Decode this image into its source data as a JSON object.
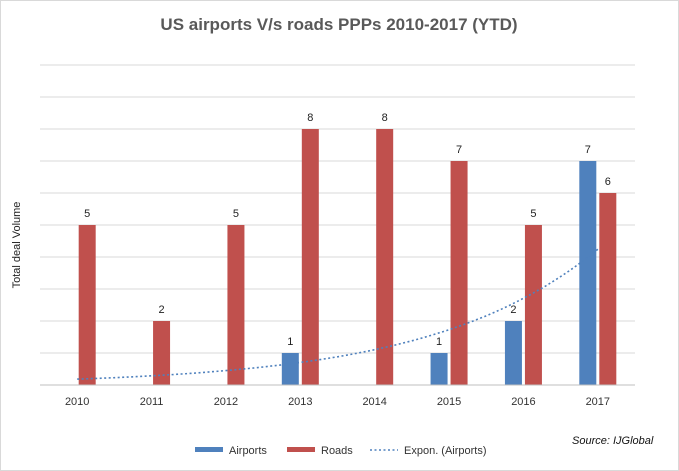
{
  "chart_data": {
    "type": "bar",
    "title": "US airports V/s roads PPPs 2010-2017 (YTD)",
    "ylabel": "Total deal Volume",
    "xlabel": "",
    "categories": [
      "2010",
      "2011",
      "2012",
      "2013",
      "2014",
      "2015",
      "2016",
      "2017"
    ],
    "series": [
      {
        "name": "Airports",
        "values": [
          0,
          0,
          0,
          1,
          0,
          1,
          2,
          7
        ],
        "color": "#4f81bd"
      },
      {
        "name": "Roads",
        "values": [
          5,
          2,
          5,
          8,
          8,
          7,
          5,
          6
        ],
        "color": "#c0504d"
      }
    ],
    "trendline": {
      "name": "Expon. (Airports)",
      "type": "exponential",
      "series": "Airports",
      "color": "#4f81bd"
    },
    "ylim": [
      0,
      10
    ],
    "grid": true,
    "legend": "bottom",
    "source": "Source:  IJGlobal"
  }
}
